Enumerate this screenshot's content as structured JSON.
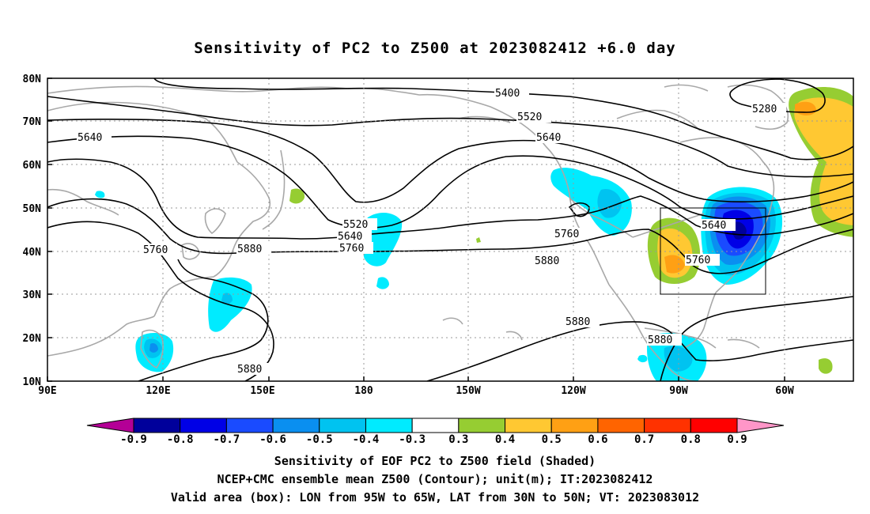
{
  "title": "Sensitivity of PC2 to Z500 at 2023082412 +6.0 day",
  "map": {
    "lat_labels": [
      "80N",
      "70N",
      "60N",
      "50N",
      "40N",
      "30N",
      "20N",
      "10N"
    ],
    "lon_labels": [
      "90E",
      "120E",
      "150E",
      "180",
      "150W",
      "120W",
      "90W",
      "60W"
    ],
    "contour_labels": {
      "c5400": "5400",
      "c5520a": "5520",
      "c5640a": "5640",
      "c5280": "5280",
      "c5640b": "5640",
      "c5760a": "5760",
      "c5880a": "5880",
      "c5520b": "5520",
      "c5640c": "5640",
      "c5760b": "5760",
      "c5760c": "5760",
      "c5880b": "5880",
      "c5640d": "5640",
      "c5760d": "5760",
      "c5880c": "5880",
      "c5880d": "5880",
      "c5880e": "5880"
    },
    "valid_box": {
      "lon_from": "95W",
      "lon_to": "65W",
      "lat_from": "30N",
      "lat_to": "50N"
    }
  },
  "colorbar": {
    "labels": [
      "-0.9",
      "-0.8",
      "-0.7",
      "-0.6",
      "-0.5",
      "-0.4",
      "-0.3",
      "0.3",
      "0.4",
      "0.5",
      "0.6",
      "0.7",
      "0.8",
      "0.9"
    ],
    "colors": [
      "#00009b",
      "#0000e6",
      "#1a4bff",
      "#0a8ff0",
      "#00c3f0",
      "#00ebff",
      "#ffffff",
      "#96cd32",
      "#ffc832",
      "#ffa014",
      "#ff6400",
      "#ff3200",
      "#ff0000"
    ],
    "end_low": "#b40096",
    "end_high": "#ff96c8"
  },
  "captions": {
    "line1": "Sensitivity of EOF PC2 to Z500 field (Shaded)",
    "line2": "NCEP+CMC ensemble mean Z500 (Contour); unit(m); IT:2023082412",
    "line3": "Valid area (box): LON from 95W to 65W, LAT from 30N to 50N; VT: 2023083012"
  }
}
